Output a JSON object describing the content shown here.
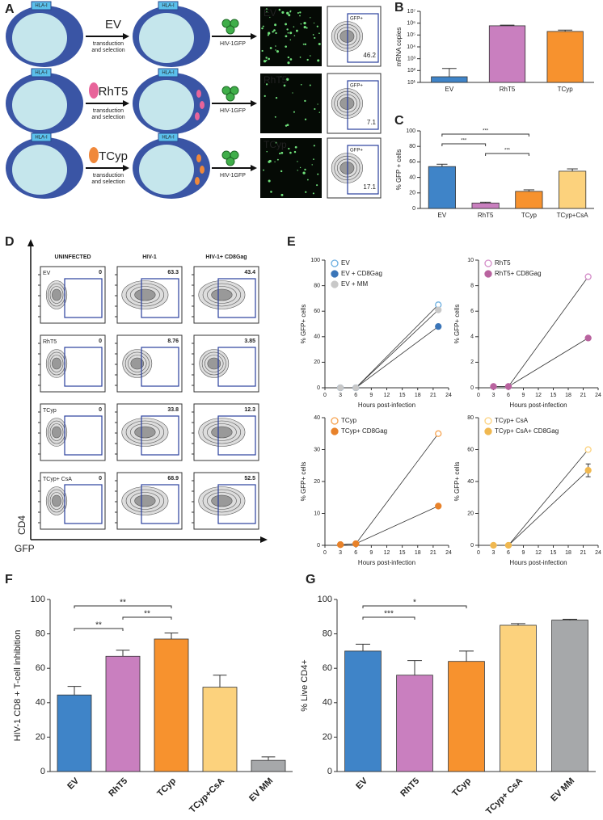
{
  "diagram_a": {
    "panel": "A",
    "hla_label": "HLA-I",
    "step_label_lines": [
      "transduction",
      "and selection"
    ],
    "virus_label": "HIV-1GFP",
    "gate_label": "GFP+",
    "rows": [
      {
        "construct": "EV",
        "color": "#29abe2",
        "gate_value": 46.2
      },
      {
        "construct": "RhT5",
        "color": "#d6338a",
        "gate_value": 7.1
      },
      {
        "construct": "TCyp",
        "color": "#f26a2e",
        "gate_value": 17.1
      }
    ]
  },
  "flow_d": {
    "panel": "D",
    "columns": [
      "UNINFECTED",
      "HIV-1",
      "HIV-1+ CD8Gag"
    ],
    "y_axis": "CD4",
    "x_axis": "GFP",
    "rows": [
      {
        "label": "EV",
        "values": [
          0,
          63.3,
          43.4
        ]
      },
      {
        "label": "RhT5",
        "values": [
          0,
          8.76,
          3.85
        ]
      },
      {
        "label": "TCyp",
        "values": [
          0,
          33.8,
          12.3
        ]
      },
      {
        "label": "TCyp+ CsA",
        "values": [
          0,
          68.9,
          52.5
        ]
      }
    ]
  },
  "chart_data": [
    {
      "type": "bar",
      "panel": "B",
      "y_label": "mRNA copies",
      "log_scale": true,
      "categories": [
        "EV",
        "RhT5",
        "TCyp"
      ],
      "values": [
        30,
        600000,
        200000
      ],
      "errors": [
        120,
        80000,
        60000
      ],
      "colors": [
        "#3f84c8",
        "#c97fbf",
        "#f7922e"
      ],
      "ylim": [
        10,
        10000000
      ],
      "yticks": [
        {
          "value": 10,
          "label": "10¹"
        },
        {
          "value": 100,
          "label": "10²"
        },
        {
          "value": 1000,
          "label": "10³"
        },
        {
          "value": 10000,
          "label": "10⁴"
        },
        {
          "value": 100000,
          "label": "10⁵"
        },
        {
          "value": 1000000,
          "label": "10⁶"
        },
        {
          "value": 10000000,
          "label": "10⁷"
        }
      ]
    },
    {
      "type": "bar",
      "panel": "C",
      "y_label": "% GFP + cells",
      "categories": [
        "EV",
        "RhT5",
        "TCyp",
        "TCyp+CsA"
      ],
      "values": [
        54,
        7,
        22,
        48
      ],
      "errors": [
        3,
        1,
        2,
        3
      ],
      "colors": [
        "#3f84c8",
        "#c97fbf",
        "#f7922e",
        "#fcd27d"
      ],
      "ylim": [
        0,
        100
      ],
      "yticks": [
        0,
        20,
        40,
        60,
        80,
        100
      ],
      "significance": [
        {
          "pair": [
            "EV",
            "TCyp"
          ],
          "label": "***"
        },
        {
          "pair": [
            "EV",
            "RhT5"
          ],
          "label": "***"
        },
        {
          "pair": [
            "RhT5",
            "TCyp"
          ],
          "label": "***"
        }
      ]
    },
    {
      "type": "line",
      "panel": "E",
      "x_label": "Hours post-infection",
      "y_label": "% GFP+ cells",
      "x": [
        3,
        6,
        22
      ],
      "xlim": [
        0,
        24
      ],
      "xticks": [
        0,
        3,
        6,
        9,
        12,
        15,
        18,
        21,
        24
      ],
      "ylim": [
        0,
        100
      ],
      "yticks": [
        0,
        20,
        40,
        60,
        80,
        100
      ],
      "series": [
        {
          "name": "EV",
          "color": "#6aaee0",
          "marker": "open",
          "values": [
            0,
            0,
            65
          ]
        },
        {
          "name": "EV + CD8Gag",
          "color": "#3a75b8",
          "marker": "filled",
          "values": [
            0,
            0,
            48
          ]
        },
        {
          "name": "EV + MM",
          "color": "#c8c8c8",
          "marker": "filled",
          "values": [
            0,
            0,
            61
          ]
        }
      ]
    },
    {
      "type": "line",
      "x_label": "Hours post-infection",
      "y_label": "% GFP+ cells",
      "x": [
        3,
        6,
        22
      ],
      "xlim": [
        0,
        24
      ],
      "xticks": [
        0,
        3,
        6,
        9,
        12,
        15,
        18,
        21,
        24
      ],
      "ylim": [
        0,
        10
      ],
      "yticks": [
        0,
        2,
        4,
        6,
        8,
        10
      ],
      "series": [
        {
          "name": "RhT5",
          "color": "#d48cc8",
          "marker": "open",
          "values": [
            0.1,
            0.1,
            8.7
          ]
        },
        {
          "name": "RhT5+ CD8Gag",
          "color": "#b9639f",
          "marker": "filled",
          "values": [
            0.1,
            0.1,
            3.9
          ]
        }
      ]
    },
    {
      "type": "line",
      "x_label": "Hours post-infection",
      "y_label": "% GFP+ cells",
      "x": [
        3,
        6,
        22
      ],
      "xlim": [
        0,
        24
      ],
      "xticks": [
        0,
        3,
        6,
        9,
        12,
        15,
        18,
        21,
        24
      ],
      "ylim": [
        0,
        40
      ],
      "yticks": [
        0,
        10,
        20,
        30,
        40
      ],
      "series": [
        {
          "name": "TCyp",
          "color": "#f7a24e",
          "marker": "open",
          "values": [
            0.2,
            0.5,
            35
          ]
        },
        {
          "name": "TCyp+ CD8Gag",
          "color": "#e8822a",
          "marker": "filled",
          "values": [
            0.2,
            0.5,
            12.3
          ]
        }
      ]
    },
    {
      "type": "line",
      "x_label": "Hours post-infection",
      "y_label": "% GFP+ cells",
      "x": [
        3,
        6,
        22
      ],
      "xlim": [
        0,
        24
      ],
      "xticks": [
        0,
        3,
        6,
        9,
        12,
        15,
        18,
        21,
        24
      ],
      "ylim": [
        0,
        80
      ],
      "yticks": [
        0,
        20,
        40,
        60,
        80
      ],
      "series": [
        {
          "name": "TCyp+ CsA",
          "color": "#fcd27d",
          "marker": "open",
          "values": [
            0,
            0,
            60
          ]
        },
        {
          "name": "TCyp+ CsA+  CD8Gag",
          "color": "#f0b850",
          "marker": "filled",
          "values": [
            0,
            0,
            47
          ],
          "errors": [
            null,
            null,
            4
          ]
        }
      ]
    },
    {
      "type": "bar",
      "panel": "F",
      "y_label": "HIV-1  CD8 + T-cell inhibition",
      "categories": [
        "EV",
        "RhT5",
        "TCyp",
        "TCyp+CsA",
        "EV MM"
      ],
      "values": [
        44.5,
        67,
        77,
        49,
        6.5
      ],
      "errors": [
        5,
        3.5,
        3.5,
        7,
        2
      ],
      "colors": [
        "#3f84c8",
        "#c97fbf",
        "#f7922e",
        "#fcd27d",
        "#a6a8aa"
      ],
      "ylim": [
        0,
        100
      ],
      "yticks": [
        0,
        20,
        40,
        60,
        80,
        100
      ],
      "significance": [
        {
          "pair": [
            "EV",
            "TCyp"
          ],
          "label": "**"
        },
        {
          "pair": [
            "RhT5",
            "TCyp"
          ],
          "label": "**"
        },
        {
          "pair": [
            "EV",
            "RhT5"
          ],
          "label": "**"
        }
      ]
    },
    {
      "type": "bar",
      "panel": "G",
      "y_label": "% Live CD4+",
      "categories": [
        "EV",
        "RhT5",
        "TCyp",
        "TCyp+ CsA",
        "EV MM"
      ],
      "values": [
        70,
        56,
        64,
        85,
        88
      ],
      "errors": [
        4,
        8.5,
        6,
        1,
        0.5
      ],
      "colors": [
        "#3f84c8",
        "#c97fbf",
        "#f7922e",
        "#fcd27d",
        "#a6a8aa"
      ],
      "ylim": [
        0,
        100
      ],
      "yticks": [
        0,
        20,
        40,
        60,
        80,
        100
      ],
      "significance": [
        {
          "pair": [
            "EV",
            "TCyp"
          ],
          "label": "*"
        },
        {
          "pair": [
            "EV",
            "RhT5"
          ],
          "label": "***"
        }
      ]
    }
  ]
}
